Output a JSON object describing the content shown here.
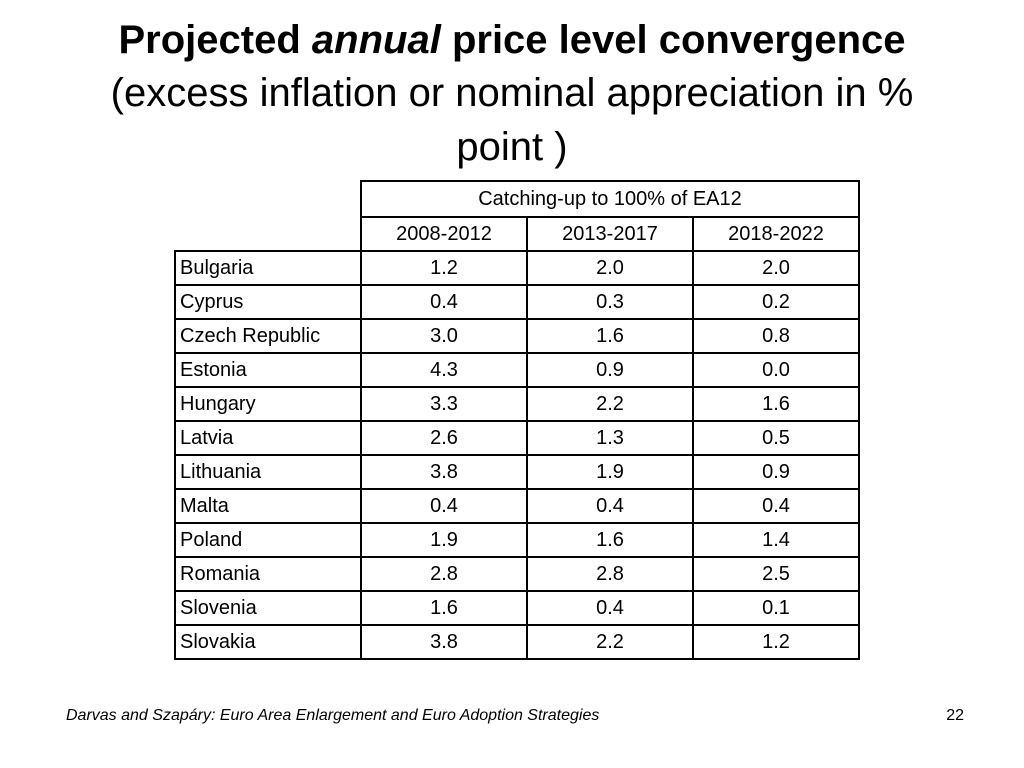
{
  "title": {
    "bold_prefix": "Projected",
    "italic_word": "annual",
    "bold_suffix": "price level convergence",
    "subtitle_line1": "(excess inflation or nominal appreciation in %",
    "subtitle_line2": "point )"
  },
  "table": {
    "group_header": "Catching-up to 100% of EA12",
    "columns": [
      "2008-2012",
      "2013-2017",
      "2018-2022"
    ],
    "rows": [
      {
        "country": "Bulgaria",
        "values": [
          "1.2",
          "2.0",
          "2.0"
        ]
      },
      {
        "country": "Cyprus",
        "values": [
          "0.4",
          "0.3",
          "0.2"
        ]
      },
      {
        "country": "Czech Republic",
        "values": [
          "3.0",
          "1.6",
          "0.8"
        ]
      },
      {
        "country": "Estonia",
        "values": [
          "4.3",
          "0.9",
          "0.0"
        ]
      },
      {
        "country": "Hungary",
        "values": [
          "3.3",
          "2.2",
          "1.6"
        ]
      },
      {
        "country": "Latvia",
        "values": [
          "2.6",
          "1.3",
          "0.5"
        ]
      },
      {
        "country": "Lithuania",
        "values": [
          "3.8",
          "1.9",
          "0.9"
        ]
      },
      {
        "country": "Malta",
        "values": [
          "0.4",
          "0.4",
          "0.4"
        ]
      },
      {
        "country": "Poland",
        "values": [
          "1.9",
          "1.6",
          "1.4"
        ]
      },
      {
        "country": "Romania",
        "values": [
          "2.8",
          "2.8",
          "2.5"
        ]
      },
      {
        "country": "Slovenia",
        "values": [
          "1.6",
          "0.4",
          "0.1"
        ]
      },
      {
        "country": "Slovakia",
        "values": [
          "3.8",
          "2.2",
          "1.2"
        ]
      }
    ]
  },
  "footer": {
    "source": "Darvas and Szapáry: Euro Area Enlargement and Euro Adoption Strategies",
    "page_number": "22"
  }
}
